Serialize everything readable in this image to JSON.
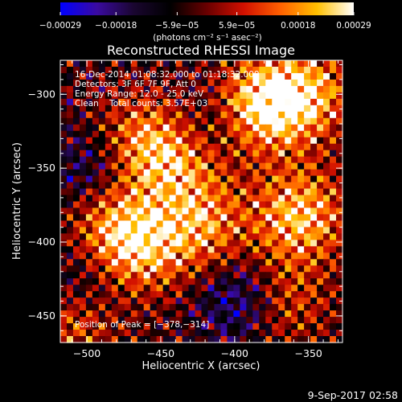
{
  "chart_data": {
    "type": "heatmap",
    "title": "Reconstructed RHESSI Image",
    "xlabel": "Heliocentric X (arcsec)",
    "ylabel": "Heliocentric Y (arcsec)",
    "xlim": [
      -518,
      -327
    ],
    "ylim": [
      -468,
      -277
    ],
    "x_ticks": [
      -500,
      -450,
      -400,
      -350
    ],
    "y_ticks": [
      -450,
      -400,
      -350,
      -300
    ],
    "x_tick_labels": [
      "−500",
      "−450",
      "−400",
      "−350"
    ],
    "y_tick_labels": [
      "−450",
      "−400",
      "−350",
      "−300"
    ],
    "colorbar": {
      "range": [
        -0.00029,
        0.00029
      ],
      "ticks": [
        -0.00029,
        -0.00018,
        -5.9e-05,
        5.9e-05,
        0.00018,
        0.00029
      ],
      "tick_labels": [
        "−0.00029",
        "−0.00018",
        "−5.9e−05",
        "5.9e−05",
        "0.00018",
        "0.00029"
      ],
      "units": "(photons cm⁻² s⁻¹ asec⁻²)",
      "colormap": [
        "#0000ff",
        "#3a0aa0",
        "#1a0630",
        "#000000",
        "#6a0000",
        "#d21000",
        "#ff6000",
        "#ffc000",
        "#ffffff"
      ]
    },
    "annotations": [
      "16-Dec-2014 01:08:32.000 to 01:18:32.000",
      "Detectors: 3F 6F 7F 9F, Att 0",
      "Energy Range: 12.0 - 25.0 keV",
      "Clean    Total counts: 3.57E+03"
    ],
    "peak_label": "Position of Peak = [−378,−314]",
    "peak_position": [
      -378,
      -314
    ],
    "hotspots": [
      {
        "x": -383,
        "y": -308,
        "weight": 1.0
      },
      {
        "x": -352,
        "y": -300,
        "weight": 0.8
      },
      {
        "x": -356,
        "y": -382,
        "weight": 0.9
      },
      {
        "x": -423,
        "y": -389,
        "weight": 0.7
      },
      {
        "x": -463,
        "y": -333,
        "weight": 0.7
      },
      {
        "x": -481,
        "y": -389,
        "weight": 0.6
      },
      {
        "x": -466,
        "y": -405,
        "weight": 0.7
      },
      {
        "x": -368,
        "y": -440,
        "weight": 0.5
      },
      {
        "x": -510,
        "y": -458,
        "weight": 0.5
      },
      {
        "x": -436,
        "y": -345,
        "weight": 0.55
      }
    ],
    "coldspots": [
      {
        "x": -395,
        "y": -440,
        "weight": 0.8
      },
      {
        "x": -495,
        "y": -350,
        "weight": 0.6
      },
      {
        "x": -415,
        "y": -320,
        "weight": 0.5
      },
      {
        "x": -500,
        "y": -425,
        "weight": 0.5
      }
    ]
  },
  "footer": {
    "timestamp": "9-Sep-2017 02:58"
  }
}
